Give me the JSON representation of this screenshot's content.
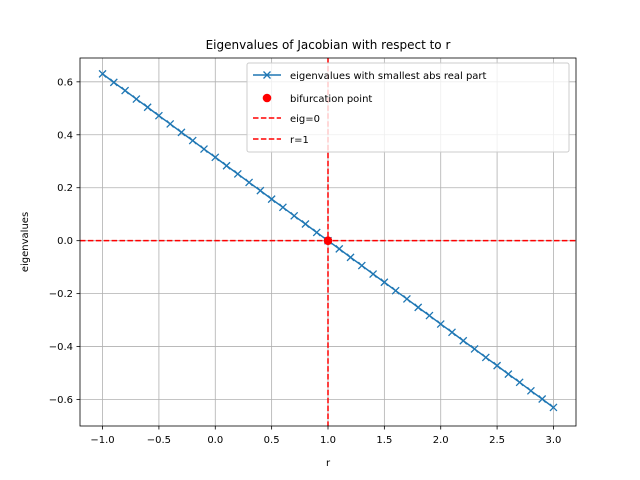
{
  "chart_data": {
    "type": "line",
    "title": "Eigenvalues of Jacobian with respect to r",
    "xlabel": "r",
    "ylabel": "eigenvalues",
    "xlim": [
      -1.2,
      3.2
    ],
    "ylim": [
      -0.7,
      0.69
    ],
    "xticks": [
      -1.0,
      -0.5,
      0.0,
      0.5,
      1.0,
      1.5,
      2.0,
      2.5,
      3.0
    ],
    "xtick_labels": [
      "−1.0",
      "−0.5",
      "0.0",
      "0.5",
      "1.0",
      "1.5",
      "2.0",
      "2.5",
      "3.0"
    ],
    "yticks": [
      -0.6,
      -0.4,
      -0.2,
      0.0,
      0.2,
      0.4,
      0.6
    ],
    "ytick_labels": [
      "−0.6",
      "−0.4",
      "−0.2",
      "0.0",
      "0.2",
      "0.4",
      "0.6"
    ],
    "grid": true,
    "legend_position": "upper right",
    "series": [
      {
        "name": "eigenvalues with smallest abs real part",
        "kind": "line-with-x-markers",
        "color": "#1f77b4",
        "x": [
          -1.0,
          -0.9,
          -0.8,
          -0.7,
          -0.6,
          -0.5,
          -0.4,
          -0.3,
          -0.2,
          -0.1,
          0.0,
          0.1,
          0.2,
          0.3,
          0.4,
          0.5,
          0.6,
          0.7,
          0.8,
          0.9,
          1.0,
          1.1,
          1.2,
          1.3,
          1.4,
          1.5,
          1.6,
          1.7,
          1.8,
          1.9,
          2.0,
          2.1,
          2.2,
          2.3,
          2.4,
          2.5,
          2.6,
          2.7,
          2.8,
          2.9,
          3.0
        ],
        "y": [
          0.63,
          0.598,
          0.567,
          0.535,
          0.504,
          0.472,
          0.441,
          0.409,
          0.378,
          0.346,
          0.315,
          0.283,
          0.252,
          0.22,
          0.189,
          0.157,
          0.126,
          0.094,
          0.063,
          0.031,
          0.0,
          -0.031,
          -0.063,
          -0.094,
          -0.126,
          -0.157,
          -0.189,
          -0.22,
          -0.252,
          -0.283,
          -0.315,
          -0.346,
          -0.378,
          -0.409,
          -0.441,
          -0.472,
          -0.504,
          -0.535,
          -0.567,
          -0.598,
          -0.63
        ]
      },
      {
        "name": "bifurcation point",
        "kind": "scatter",
        "color": "#ff0000",
        "x": [
          1.0
        ],
        "y": [
          0.0
        ]
      },
      {
        "name": "eig=0",
        "kind": "hline",
        "color": "#ff0000",
        "y": 0.0
      },
      {
        "name": "r=1",
        "kind": "vline",
        "color": "#ff0000",
        "x": 1.0
      }
    ]
  }
}
